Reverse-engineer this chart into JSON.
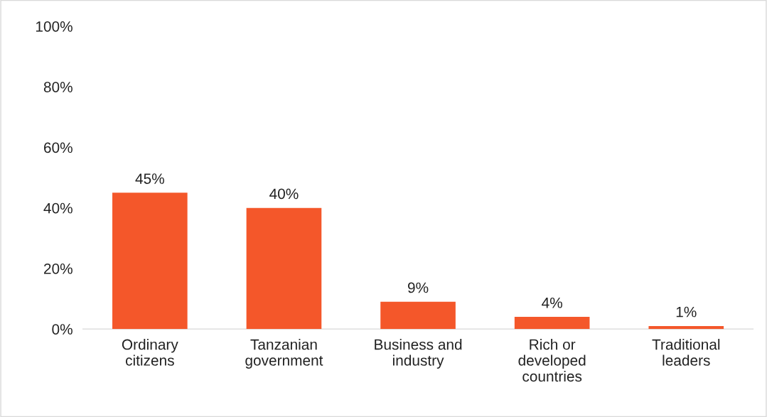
{
  "chart_data": {
    "type": "bar",
    "categories": [
      "Ordinary\ncitizens",
      "Tanzanian\ngovernment",
      "Business and\nindustry",
      "Rich or\ndeveloped\ncountries",
      "Traditional\nleaders"
    ],
    "values": [
      45,
      40,
      9,
      4,
      1
    ],
    "color": "#f4572a",
    "value_labels": [
      "45%",
      "40%",
      "9%",
      "4%",
      "1%"
    ],
    "ylim": [
      0,
      100
    ],
    "yticks": [
      {
        "value": 0,
        "label": "0%"
      },
      {
        "value": 20,
        "label": "20%"
      },
      {
        "value": 40,
        "label": "40%"
      },
      {
        "value": 60,
        "label": "60%"
      },
      {
        "value": 80,
        "label": "80%"
      },
      {
        "value": 100,
        "label": "100%"
      }
    ],
    "grid": false
  }
}
